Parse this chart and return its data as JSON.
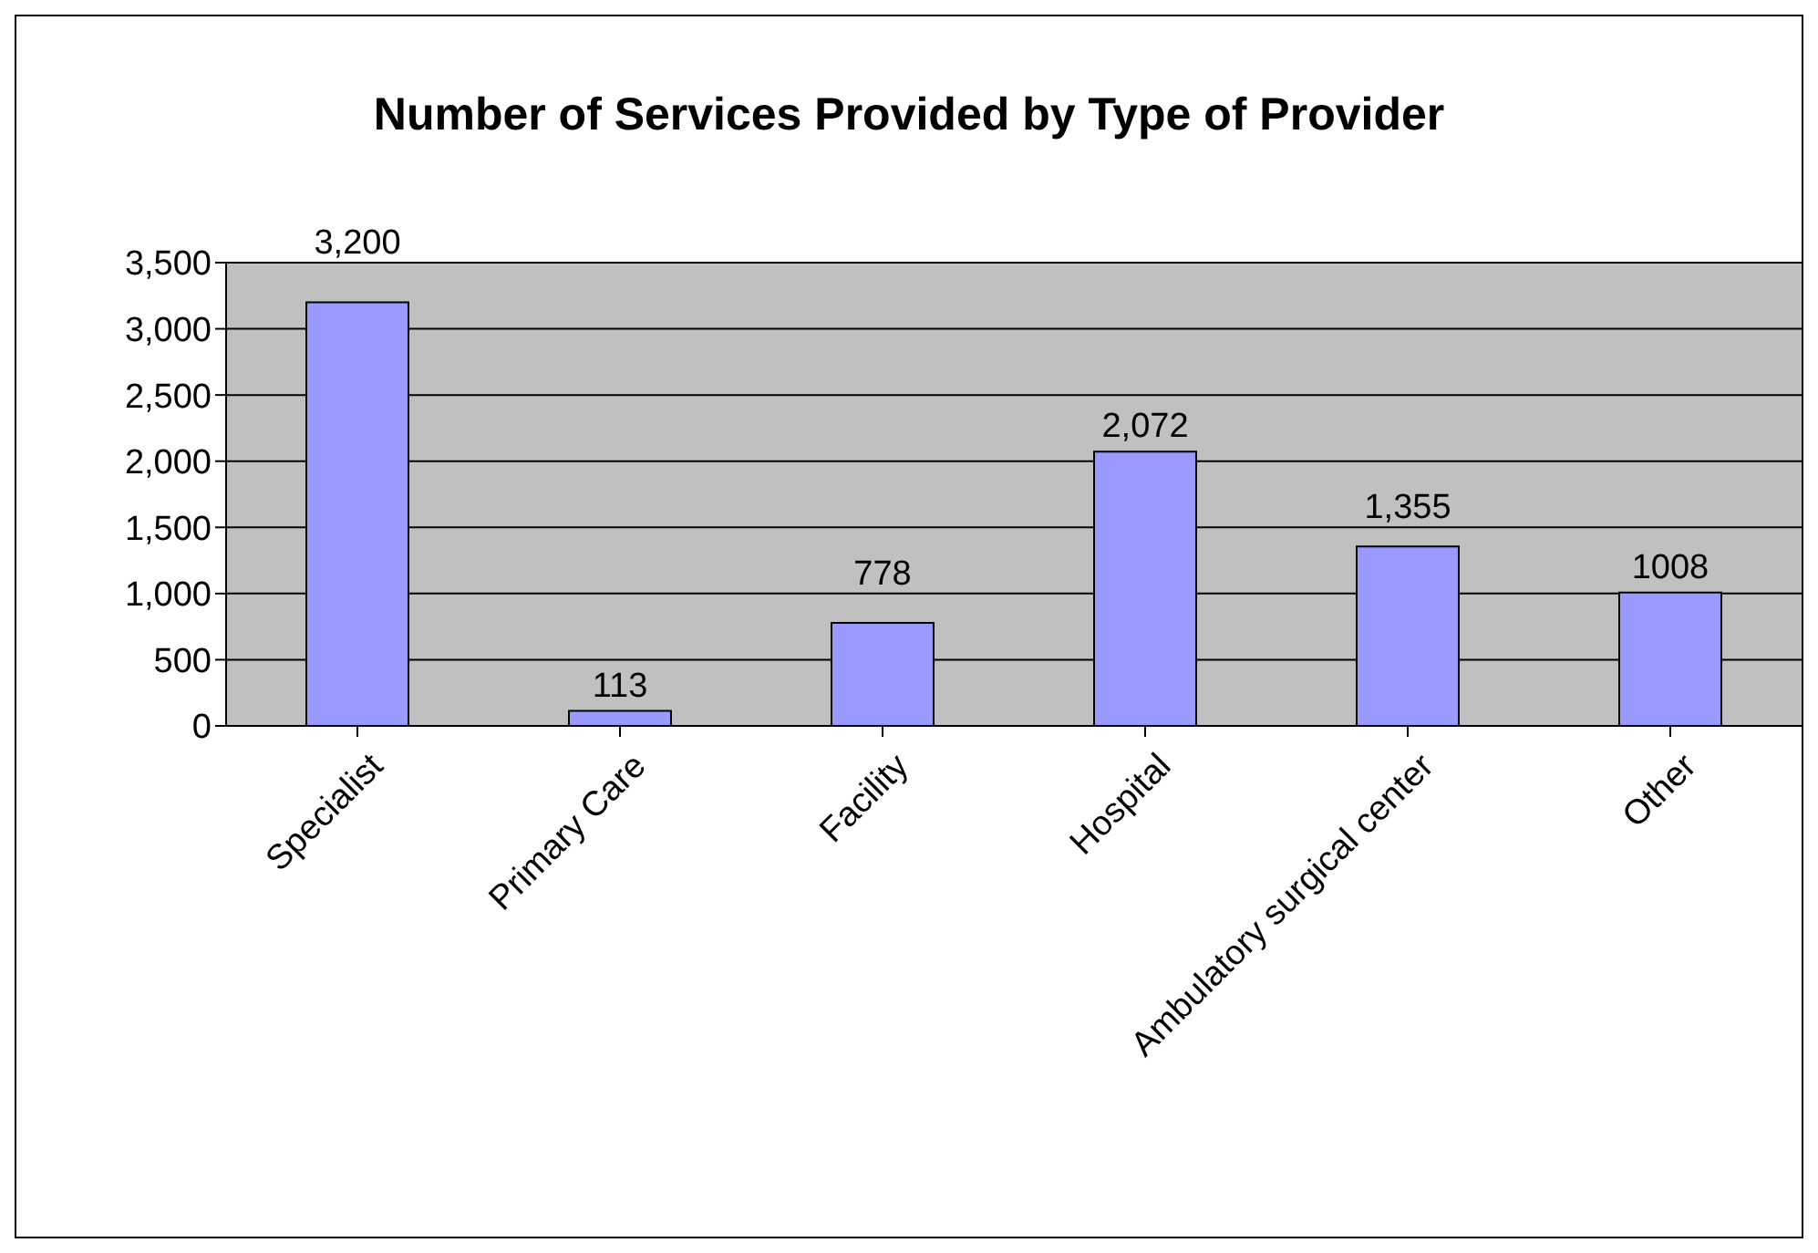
{
  "chart_data": {
    "type": "bar",
    "title": "Number of Services Provided by Type of Provider",
    "categories": [
      "Specialist",
      "Primary Care",
      "Facility",
      "Hospital",
      "Ambulatory surgical center",
      "Other"
    ],
    "values": [
      3200,
      113,
      778,
      2072,
      1355,
      1008
    ],
    "value_labels": [
      "3,200",
      "113",
      "778",
      "2,072",
      "1,355",
      "1008"
    ],
    "color": "#9999ff",
    "ylim": [
      0,
      3500
    ],
    "yticks": [
      0,
      500,
      {
        "value": 1000,
        "label": "1,000"
      },
      {
        "value": 1500,
        "label": "1,500"
      },
      {
        "value": 2000,
        "label": "2,000"
      },
      {
        "value": 2500,
        "label": "2,500"
      },
      {
        "value": 3000,
        "label": "3,000"
      },
      {
        "value": 3500,
        "label": "3,500"
      }
    ],
    "grid": "y",
    "legend": false
  }
}
